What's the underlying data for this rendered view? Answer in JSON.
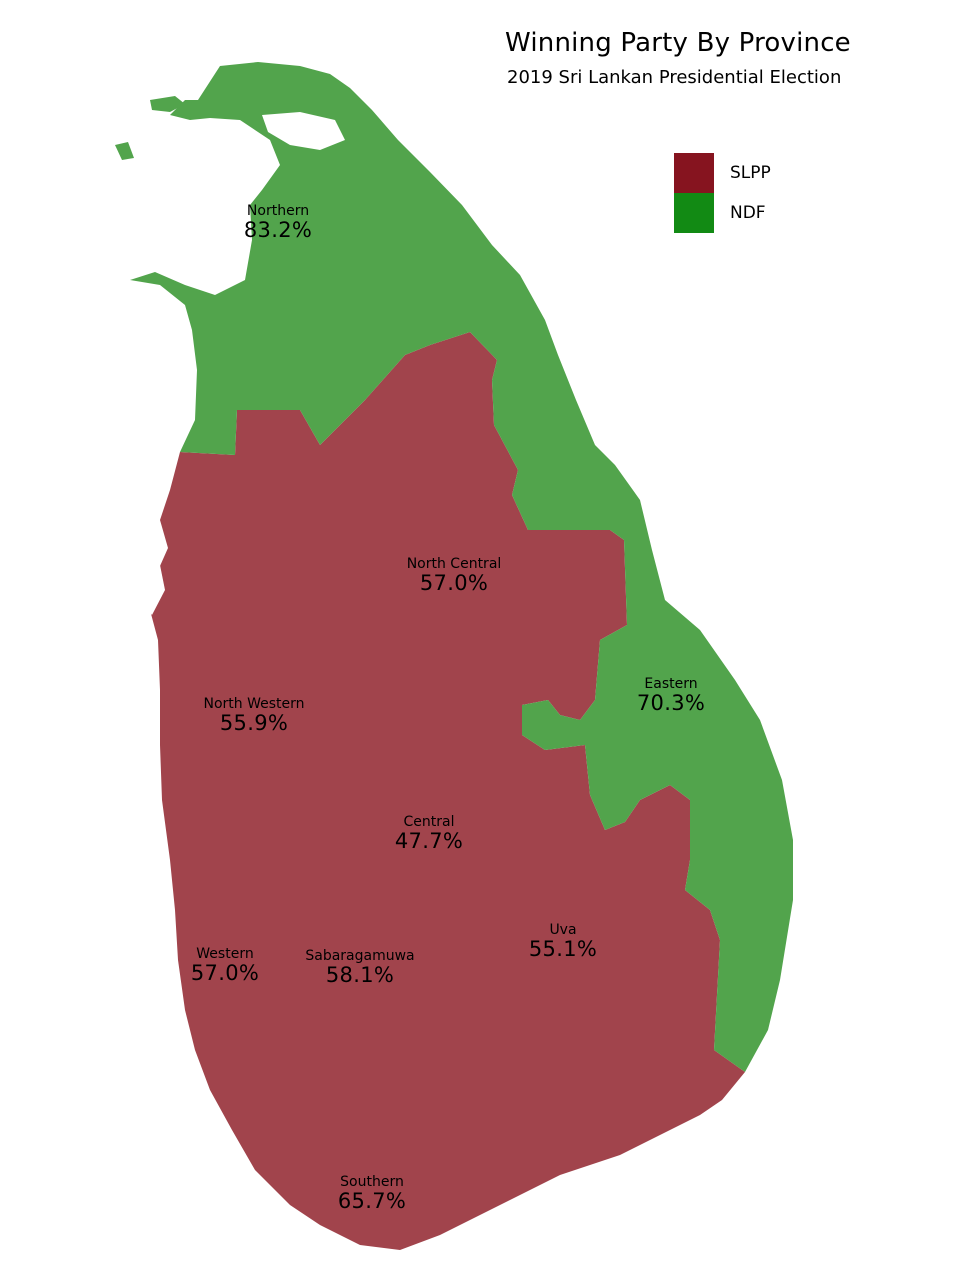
{
  "title": "Winning Party By Province",
  "subtitle": "2019 Sri Lankan Presidential Election",
  "legend": [
    {
      "party": "SLPP",
      "color": "#86141f"
    },
    {
      "party": "NDF",
      "color": "#128a14"
    }
  ],
  "map_colors": {
    "SLPP": "#a1444c",
    "NDF": "#52a44c"
  },
  "provinces": [
    {
      "name": "Northern",
      "percent": "83.2%",
      "winner": "NDF"
    },
    {
      "name": "North Central",
      "percent": "57.0%",
      "winner": "SLPP"
    },
    {
      "name": "Eastern",
      "percent": "70.3%",
      "winner": "NDF"
    },
    {
      "name": "North Western",
      "percent": "55.9%",
      "winner": "SLPP"
    },
    {
      "name": "Central",
      "percent": "47.7%",
      "winner": "SLPP"
    },
    {
      "name": "Uva",
      "percent": "55.1%",
      "winner": "SLPP"
    },
    {
      "name": "Western",
      "percent": "57.0%",
      "winner": "SLPP"
    },
    {
      "name": "Sabaragamuwa",
      "percent": "58.1%",
      "winner": "SLPP"
    },
    {
      "name": "Southern",
      "percent": "65.7%",
      "winner": "SLPP"
    }
  ]
}
